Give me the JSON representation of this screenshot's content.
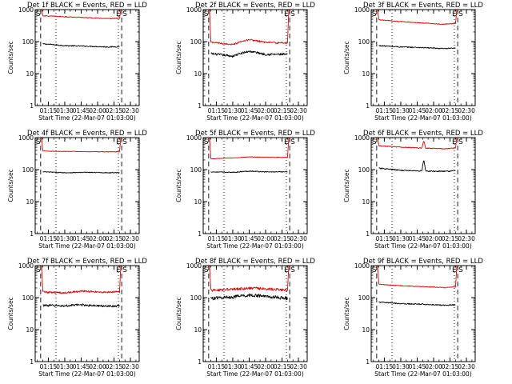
{
  "figure": {
    "colors": {
      "events": "#000000",
      "lld": "#e00000",
      "axes": "#000000",
      "background": "#ffffff"
    }
  },
  "chart_data": [
    {
      "type": "line",
      "title": "Det 1f BLACK = Events, RED = LLD",
      "xlabel": "Start Time (22-Mar-07 01:03:00)",
      "ylabel": "Counts/sec",
      "yscale": "log",
      "ylim": [
        1,
        1000
      ],
      "xlim_minutes": [
        63,
        158
      ],
      "x_tick_labels": [
        "01:15",
        "01:30",
        "01:45",
        "02:00",
        "02:15",
        "02:30"
      ],
      "y_tick_labels": [
        "1",
        "10",
        "100",
        "1000"
      ],
      "markers": {
        "start_label": "S",
        "end_label": "E",
        "end_label_2": "S"
      },
      "marker_times": {
        "s_dashed": "01:08",
        "s_dotted": "01:22",
        "e_dotted": "02:19",
        "e_dashed": "02:22"
      },
      "series": [
        {
          "role": "black",
          "time": [
            "01:10",
            "01:30",
            "01:50",
            "02:10",
            "02:20"
          ],
          "values": [
            85,
            75,
            72,
            68,
            70
          ],
          "noise": 0.04
        },
        {
          "role": "red",
          "time": [
            "01:10",
            "01:30",
            "01:50",
            "02:10",
            "02:20"
          ],
          "values": [
            640,
            600,
            560,
            520,
            540
          ],
          "noise": 0.03,
          "edge_rise": 1000
        }
      ]
    },
    {
      "type": "line",
      "title": "Det 2f BLACK = Events, RED = LLD",
      "xlabel": "Start Time (22-Mar-07 01:03:00)",
      "ylabel": "Counts/sec",
      "yscale": "log",
      "ylim": [
        1,
        1000
      ],
      "xlim_minutes": [
        63,
        158
      ],
      "x_tick_labels": [
        "01:15",
        "01:30",
        "01:45",
        "02:00",
        "02:15",
        "02:30"
      ],
      "y_tick_labels": [
        "1",
        "10",
        "100",
        "1000"
      ],
      "markers": {
        "start_label": "S",
        "end_label": "E",
        "end_label_2": "S"
      },
      "marker_times": {
        "s_dashed": "01:08",
        "s_dotted": "01:22",
        "e_dotted": "02:19",
        "e_dashed": "02:22"
      },
      "series": [
        {
          "role": "black",
          "time": [
            "01:10",
            "01:30",
            "01:45",
            "02:00",
            "02:20"
          ],
          "values": [
            42,
            35,
            50,
            40,
            40
          ],
          "noise": 0.08
        },
        {
          "role": "red",
          "time": [
            "01:10",
            "01:30",
            "01:45",
            "02:00",
            "02:20"
          ],
          "values": [
            95,
            80,
            115,
            95,
            90
          ],
          "noise": 0.06,
          "edge_rise": 1000
        }
      ]
    },
    {
      "type": "line",
      "title": "Det 3f BLACK = Events, RED = LLD",
      "xlabel": "Start Time (22-Mar-07 01:03:00)",
      "ylabel": "Counts/sec",
      "yscale": "log",
      "ylim": [
        1,
        1000
      ],
      "xlim_minutes": [
        63,
        158
      ],
      "x_tick_labels": [
        "01:15",
        "01:30",
        "01:45",
        "02:00",
        "02:15",
        "02:30"
      ],
      "y_tick_labels": [
        "1",
        "10",
        "100",
        "1000"
      ],
      "markers": {
        "start_label": "S",
        "end_label": "E",
        "end_label_2": "S"
      },
      "marker_times": {
        "s_dashed": "01:08",
        "s_dotted": "01:22",
        "e_dotted": "02:19",
        "e_dashed": "02:22"
      },
      "series": [
        {
          "role": "black",
          "time": [
            "01:10",
            "01:30",
            "01:50",
            "02:10",
            "02:20"
          ],
          "values": [
            75,
            68,
            65,
            60,
            62
          ],
          "noise": 0.04
        },
        {
          "role": "red",
          "time": [
            "01:10",
            "01:30",
            "01:50",
            "02:10",
            "02:20"
          ],
          "values": [
            480,
            420,
            380,
            350,
            370
          ],
          "noise": 0.03,
          "edge_rise": 1000
        }
      ]
    },
    {
      "type": "line",
      "title": "Det 4f BLACK = Events, RED = LLD",
      "xlabel": "Start Time (22-Mar-07 01:03:00)",
      "ylabel": "Counts/sec",
      "yscale": "log",
      "ylim": [
        1,
        1000
      ],
      "xlim_minutes": [
        63,
        158
      ],
      "x_tick_labels": [
        "01:15",
        "01:30",
        "01:45",
        "02:00",
        "02:15",
        "02:30"
      ],
      "y_tick_labels": [
        "1",
        "10",
        "100",
        "1000"
      ],
      "markers": {
        "start_label": "S",
        "end_label": "E",
        "end_label_2": "S"
      },
      "marker_times": {
        "s_dashed": "01:08",
        "s_dotted": "01:22",
        "e_dotted": "02:19",
        "e_dashed": "02:22"
      },
      "series": [
        {
          "role": "black",
          "time": [
            "01:10",
            "01:30",
            "01:50",
            "02:10",
            "02:20"
          ],
          "values": [
            85,
            80,
            82,
            80,
            80
          ],
          "noise": 0.03
        },
        {
          "role": "red",
          "time": [
            "01:10",
            "01:30",
            "01:50",
            "02:10",
            "02:20"
          ],
          "values": [
            380,
            370,
            365,
            360,
            360
          ],
          "noise": 0.02,
          "edge_rise": 1000
        }
      ]
    },
    {
      "type": "line",
      "title": "Det 5f BLACK = Events, RED = LLD",
      "xlabel": "Start Time (22-Mar-07 01:03:00)",
      "ylabel": "Counts/sec",
      "yscale": "log",
      "ylim": [
        1,
        1000
      ],
      "xlim_minutes": [
        63,
        158
      ],
      "x_tick_labels": [
        "01:15",
        "01:30",
        "01:45",
        "02:00",
        "02:15",
        "02:30"
      ],
      "y_tick_labels": [
        "1",
        "10",
        "100",
        "1000"
      ],
      "markers": {
        "start_label": "S",
        "end_label": "E",
        "end_label_2": "S"
      },
      "marker_times": {
        "s_dashed": "01:08",
        "s_dotted": "01:22",
        "e_dotted": "02:19",
        "e_dashed": "02:22"
      },
      "series": [
        {
          "role": "black",
          "time": [
            "01:10",
            "01:30",
            "01:45",
            "02:00",
            "02:20"
          ],
          "values": [
            85,
            82,
            90,
            85,
            85
          ],
          "noise": 0.03
        },
        {
          "role": "red",
          "time": [
            "01:10",
            "01:30",
            "01:45",
            "02:00",
            "02:20"
          ],
          "values": [
            220,
            230,
            250,
            245,
            240
          ],
          "noise": 0.02,
          "edge_rise": 1000
        }
      ]
    },
    {
      "type": "line",
      "title": "Det 6f BLACK = Events, RED = LLD",
      "xlabel": "Start Time (22-Mar-07 01:03:00)",
      "ylabel": "Counts/sec",
      "yscale": "log",
      "ylim": [
        1,
        1000
      ],
      "xlim_minutes": [
        63,
        158
      ],
      "x_tick_labels": [
        "01:15",
        "01:30",
        "01:45",
        "02:00",
        "02:15",
        "02:30"
      ],
      "y_tick_labels": [
        "1",
        "10",
        "100",
        "1000"
      ],
      "markers": {
        "start_label": "S",
        "end_label": "E",
        "end_label_2": "S"
      },
      "marker_times": {
        "s_dashed": "01:08",
        "s_dotted": "01:22",
        "e_dotted": "02:19",
        "e_dashed": "02:22"
      },
      "series": [
        {
          "role": "black",
          "time": [
            "01:10",
            "01:30",
            "01:50",
            "02:10",
            "02:20"
          ],
          "values": [
            110,
            95,
            90,
            88,
            92
          ],
          "noise": 0.04,
          "spike": {
            "time": "01:51",
            "value": 200
          }
        },
        {
          "role": "red",
          "time": [
            "01:10",
            "01:30",
            "01:50",
            "02:10",
            "02:20"
          ],
          "values": [
            560,
            500,
            470,
            450,
            470
          ],
          "noise": 0.03,
          "edge_rise": 1000,
          "spike": {
            "time": "01:51",
            "value": 800
          }
        }
      ]
    },
    {
      "type": "line",
      "title": "Det 7f BLACK = Events, RED = LLD",
      "xlabel": "Start Time (22-Mar-07 01:03:00)",
      "ylabel": "Counts/sec",
      "yscale": "log",
      "ylim": [
        1,
        1000
      ],
      "xlim_minutes": [
        63,
        158
      ],
      "x_tick_labels": [
        "01:15",
        "01:30",
        "01:45",
        "02:00",
        "02:15",
        "02:30"
      ],
      "y_tick_labels": [
        "1",
        "10",
        "100",
        "1000"
      ],
      "markers": {
        "start_label": "S",
        "end_label": "E",
        "end_label_2": "S"
      },
      "marker_times": {
        "s_dashed": "01:08",
        "s_dotted": "01:22",
        "e_dotted": "02:19",
        "e_dashed": "02:22"
      },
      "series": [
        {
          "role": "black",
          "time": [
            "01:10",
            "01:30",
            "01:45",
            "02:00",
            "02:20"
          ],
          "values": [
            58,
            55,
            60,
            55,
            55
          ],
          "noise": 0.08
        },
        {
          "role": "red",
          "time": [
            "01:10",
            "01:30",
            "01:45",
            "02:00",
            "02:20"
          ],
          "values": [
            150,
            140,
            160,
            150,
            150
          ],
          "noise": 0.07,
          "edge_rise": 1000
        }
      ]
    },
    {
      "type": "line",
      "title": "Det 8f BLACK = Events, RED = LLD",
      "xlabel": "Start Time (22-Mar-07 01:03:00)",
      "ylabel": "Counts/sec",
      "yscale": "log",
      "ylim": [
        1,
        1000
      ],
      "xlim_minutes": [
        63,
        158
      ],
      "x_tick_labels": [
        "01:15",
        "01:30",
        "01:45",
        "02:00",
        "02:15",
        "02:30"
      ],
      "y_tick_labels": [
        "1",
        "10",
        "100",
        "1000"
      ],
      "markers": {
        "start_label": "S",
        "end_label": "E",
        "end_label_2": "S"
      },
      "marker_times": {
        "s_dashed": "01:08",
        "s_dotted": "01:22",
        "e_dotted": "02:19",
        "e_dashed": "02:22"
      },
      "series": [
        {
          "role": "black",
          "time": [
            "01:10",
            "01:30",
            "01:45",
            "02:00",
            "02:20"
          ],
          "values": [
            95,
            105,
            120,
            110,
            95
          ],
          "noise": 0.12
        },
        {
          "role": "red",
          "time": [
            "01:10",
            "01:30",
            "01:45",
            "02:00",
            "02:20"
          ],
          "values": [
            170,
            180,
            200,
            190,
            170
          ],
          "noise": 0.1,
          "edge_rise": 1000
        }
      ]
    },
    {
      "type": "line",
      "title": "Det 9f BLACK = Events, RED = LLD",
      "xlabel": "Start Time (22-Mar-07 01:03:00)",
      "ylabel": "Counts/sec",
      "yscale": "log",
      "ylim": [
        1,
        1000
      ],
      "xlim_minutes": [
        63,
        158
      ],
      "x_tick_labels": [
        "01:15",
        "01:30",
        "01:45",
        "02:00",
        "02:15",
        "02:30"
      ],
      "y_tick_labels": [
        "1",
        "10",
        "100",
        "1000"
      ],
      "markers": {
        "start_label": "S",
        "end_label": "E",
        "end_label_2": "S"
      },
      "marker_times": {
        "s_dashed": "01:08",
        "s_dotted": "01:22",
        "e_dotted": "02:19",
        "e_dashed": "02:22"
      },
      "series": [
        {
          "role": "black",
          "time": [
            "01:10",
            "01:30",
            "01:50",
            "02:10",
            "02:20"
          ],
          "values": [
            72,
            65,
            62,
            58,
            60
          ],
          "noise": 0.04
        },
        {
          "role": "red",
          "time": [
            "01:10",
            "01:30",
            "01:50",
            "02:10",
            "02:20"
          ],
          "values": [
            260,
            235,
            220,
            205,
            215
          ],
          "noise": 0.03,
          "edge_rise": 1000
        }
      ]
    }
  ]
}
